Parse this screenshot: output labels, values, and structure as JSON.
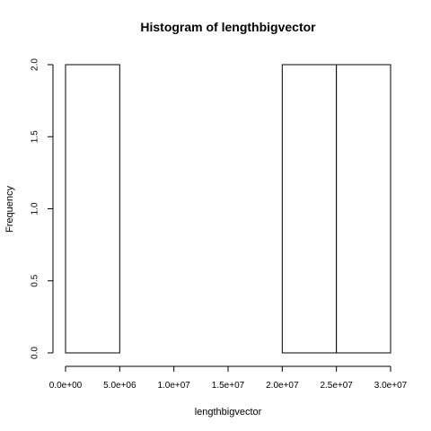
{
  "chart_data": {
    "type": "bar",
    "title": "Histogram of lengthbigvector",
    "xlabel": "lengthbigvector",
    "ylabel": "Frequency",
    "bin_edges": [
      0,
      5000000,
      10000000,
      15000000,
      20000000,
      25000000,
      30000000
    ],
    "values": [
      2,
      0,
      0,
      0,
      2,
      2
    ],
    "xlim": [
      0,
      30000000
    ],
    "ylim": [
      0,
      2
    ],
    "x_ticks": [
      0,
      5000000,
      10000000,
      15000000,
      20000000,
      25000000,
      30000000
    ],
    "x_tick_labels": [
      "0.0e+00",
      "5.0e+06",
      "1.0e+07",
      "1.5e+07",
      "2.0e+07",
      "2.5e+07",
      "3.0e+07"
    ],
    "y_ticks": [
      0,
      0.5,
      1,
      1.5,
      2
    ],
    "y_tick_labels": [
      "0.0",
      "0.5",
      "1.0",
      "1.5",
      "2.0"
    ],
    "grid": false,
    "bar_fill": "#ffffff",
    "bar_stroke": "#000000"
  }
}
